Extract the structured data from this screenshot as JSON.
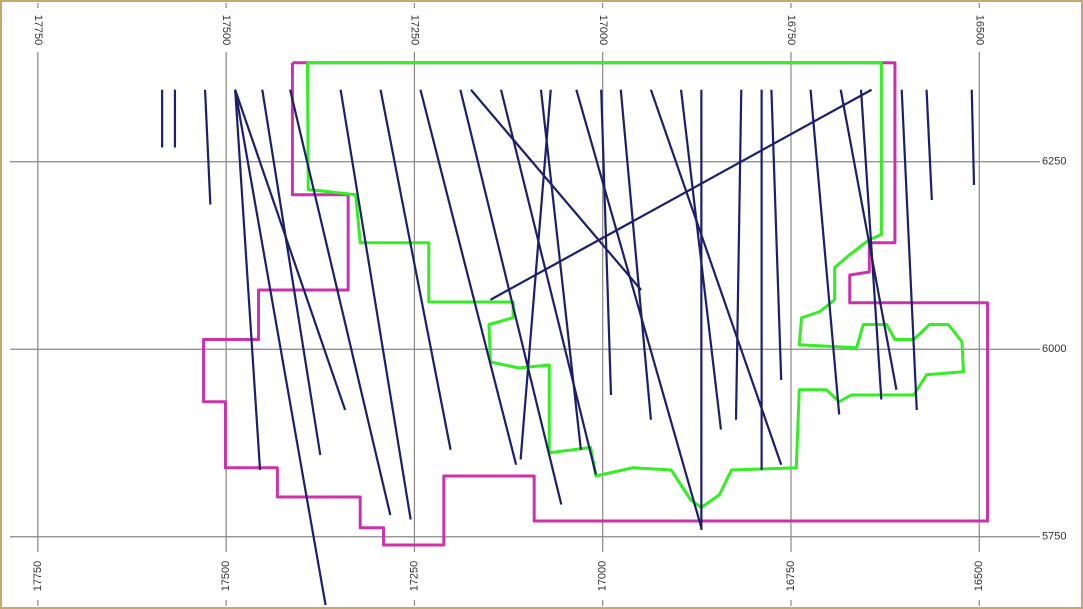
{
  "chart_data": {
    "type": "line",
    "xlim": [
      17787,
      16426
    ],
    "ylim": [
      5659,
      6459
    ],
    "xticks": [
      17750,
      17500,
      17250,
      17000,
      16750,
      16500
    ],
    "yticks": [
      5750,
      6000,
      6250
    ],
    "grid": true,
    "series": [
      {
        "color": "#cc33aa",
        "x": [
          17412,
          17412,
          17338,
          17338,
          17457,
          17457,
          17530,
          17530,
          17501,
          17501,
          17432,
          17432,
          17322,
          17322,
          17291,
          17291,
          17211,
          17211,
          17091,
          17091,
          16489,
          16489,
          16672,
          16672,
          16646,
          16646,
          16612,
          16612,
          17412
        ],
        "values": [
          6382,
          6206,
          6206,
          6079,
          6079,
          6013,
          6013,
          5930,
          5930,
          5842,
          5842,
          5803,
          5803,
          5762,
          5762,
          5739,
          5739,
          5831,
          5831,
          5771,
          5771,
          6062,
          6062,
          6099,
          6103,
          6142,
          6142,
          6382,
          6382
        ]
      },
      {
        "color": "#33ee22",
        "x": [
          17392,
          16630,
          16630,
          16646,
          16672,
          16692,
          16692,
          16712,
          16736,
          16739,
          16663,
          16654,
          16623,
          16612,
          16587,
          16566,
          16541,
          16523,
          16521,
          16570,
          16587,
          16670,
          16686,
          16703,
          16739,
          16743,
          16829,
          16845,
          16869,
          16883,
          16909,
          16960,
          17009,
          17016,
          17071,
          17071,
          17111,
          17149,
          17151,
          17119,
          17119,
          17231,
          17231,
          17322,
          17328,
          17391,
          17392
        ],
        "values": [
          6382,
          6382,
          6153,
          6146,
          6126,
          6109,
          6066,
          6050,
          6042,
          6006,
          6002,
          6033,
          6033,
          6013,
          6013,
          6033,
          6033,
          6010,
          5970,
          5966,
          5939,
          5939,
          5930,
          5946,
          5946,
          5842,
          5839,
          5806,
          5789,
          5799,
          5839,
          5842,
          5831,
          5869,
          5862,
          5979,
          5975,
          5983,
          6033,
          6042,
          6063,
          6063,
          6142,
          6142,
          6206,
          6213,
          6382
        ]
      },
      {
        "color": "#1c1f6b",
        "x": [
          17585,
          17585
        ],
        "values": [
          6346,
          6269
        ]
      },
      {
        "color": "#1c1f6b",
        "x": [
          17568,
          17568
        ],
        "values": [
          6346,
          6269
        ]
      },
      {
        "color": "#1c1f6b",
        "x": [
          17528,
          17521
        ],
        "values": [
          6346,
          6193
        ]
      },
      {
        "color": "#1c1f6b",
        "x": [
          17488,
          17342
        ],
        "values": [
          6346,
          5919
        ]
      },
      {
        "color": "#1c1f6b",
        "x": [
          17488,
          17368
        ],
        "values": [
          6346,
          5659
        ]
      },
      {
        "color": "#1c1f6b",
        "x": [
          17488,
          17455
        ],
        "values": [
          6346,
          5839
        ]
      },
      {
        "color": "#1c1f6b",
        "x": [
          17452,
          17375
        ],
        "values": [
          6346,
          5859
        ]
      },
      {
        "color": "#1c1f6b",
        "x": [
          17415,
          17282
        ],
        "values": [
          6346,
          5779
        ]
      },
      {
        "color": "#1c1f6b",
        "x": [
          17348,
          17255
        ],
        "values": [
          6346,
          5773
        ]
      },
      {
        "color": "#1c1f6b",
        "x": [
          17295,
          17202
        ],
        "values": [
          6346,
          5866
        ]
      },
      {
        "color": "#1c1f6b",
        "x": [
          17242,
          17115
        ],
        "values": [
          6346,
          5846
        ]
      },
      {
        "color": "#1c1f6b",
        "x": [
          17189,
          17055
        ],
        "values": [
          6346,
          5793
        ]
      },
      {
        "color": "#1c1f6b",
        "x": [
          17135,
          17009
        ],
        "values": [
          6346,
          5833
        ]
      },
      {
        "color": "#1c1f6b",
        "x": [
          17082,
          17029
        ],
        "values": [
          6346,
          5866
        ]
      },
      {
        "color": "#1c1f6b",
        "x": [
          17035,
          16869
        ],
        "values": [
          6346,
          5762
        ]
      },
      {
        "color": "#1c1f6b",
        "x": [
          16976,
          16936
        ],
        "values": [
          6346,
          5906
        ]
      },
      {
        "color": "#1c1f6b",
        "x": [
          16936,
          16763
        ],
        "values": [
          6346,
          5846
        ]
      },
      {
        "color": "#1c1f6b",
        "x": [
          16869,
          16869
        ],
        "values": [
          6346,
          5759
        ]
      },
      {
        "color": "#1c1f6b",
        "x": [
          16816,
          16823
        ],
        "values": [
          6346,
          5906
        ]
      },
      {
        "color": "#1c1f6b",
        "x": [
          16776,
          16763
        ],
        "values": [
          6346,
          5959
        ]
      },
      {
        "color": "#1c1f6b",
        "x": [
          16724,
          16686
        ],
        "values": [
          6346,
          5913
        ]
      },
      {
        "color": "#1c1f6b",
        "x": [
          16684,
          16610
        ],
        "values": [
          6346,
          5946
        ]
      },
      {
        "color": "#1c1f6b",
        "x": [
          16657,
          16630
        ],
        "values": [
          6346,
          5933
        ]
      },
      {
        "color": "#1c1f6b",
        "x": [
          16603,
          16583
        ],
        "values": [
          6346,
          5919
        ]
      },
      {
        "color": "#1c1f6b",
        "x": [
          16570,
          16563
        ],
        "values": [
          6346,
          6199
        ]
      },
      {
        "color": "#1c1f6b",
        "x": [
          16510,
          16507
        ],
        "values": [
          6346,
          6219
        ]
      },
      {
        "color": "#1c1f6b",
        "x": [
          17175,
          16949
        ],
        "values": [
          6346,
          6079
        ]
      },
      {
        "color": "#1c1f6b",
        "x": [
          17149,
          16643
        ],
        "values": [
          6066,
          6346
        ]
      },
      {
        "color": "#1c1f6b",
        "x": [
          17069,
          17109
        ],
        "values": [
          6346,
          5853
        ]
      },
      {
        "color": "#1c1f6b",
        "x": [
          17002,
          16989
        ],
        "values": [
          6346,
          5939
        ]
      },
      {
        "color": "#1c1f6b",
        "x": [
          16896,
          16843
        ],
        "values": [
          6346,
          5893
        ]
      },
      {
        "color": "#1c1f6b",
        "x": [
          16789,
          16789
        ],
        "values": [
          6346,
          5839
        ]
      }
    ]
  }
}
